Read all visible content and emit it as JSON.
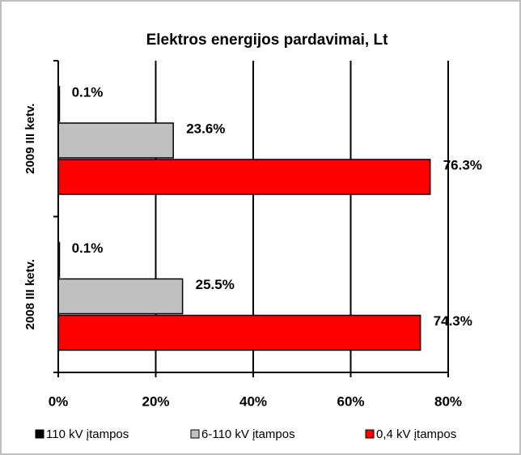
{
  "chart_data": {
    "type": "bar",
    "orientation": "horizontal",
    "title": "Elektros energijos pardavimai, Lt",
    "categories": [
      "2009 III ketv.",
      "2008 III ketv."
    ],
    "series": [
      {
        "name": "110 kV įtampos",
        "color": "#000000",
        "values": [
          0.1,
          0.1
        ],
        "value_labels": [
          "0.1%",
          "0.1%"
        ]
      },
      {
        "name": "6-110 kV įtampos",
        "color": "#c0c0c0",
        "values": [
          23.6,
          25.5
        ],
        "value_labels": [
          "23.6%",
          "25.5%"
        ]
      },
      {
        "name": "0,4 kV įtampos",
        "color": "#ff0000",
        "values": [
          76.3,
          74.3
        ],
        "value_labels": [
          "76.3%",
          "74.3%"
        ]
      }
    ],
    "xlim": [
      0,
      80
    ],
    "xticks": [
      {
        "value": 0,
        "label": "0%"
      },
      {
        "value": 20,
        "label": "20%"
      },
      {
        "value": 40,
        "label": "40%"
      },
      {
        "value": 60,
        "label": "60%"
      },
      {
        "value": 80,
        "label": "80%"
      }
    ],
    "grid": true,
    "legend": "bottom"
  }
}
